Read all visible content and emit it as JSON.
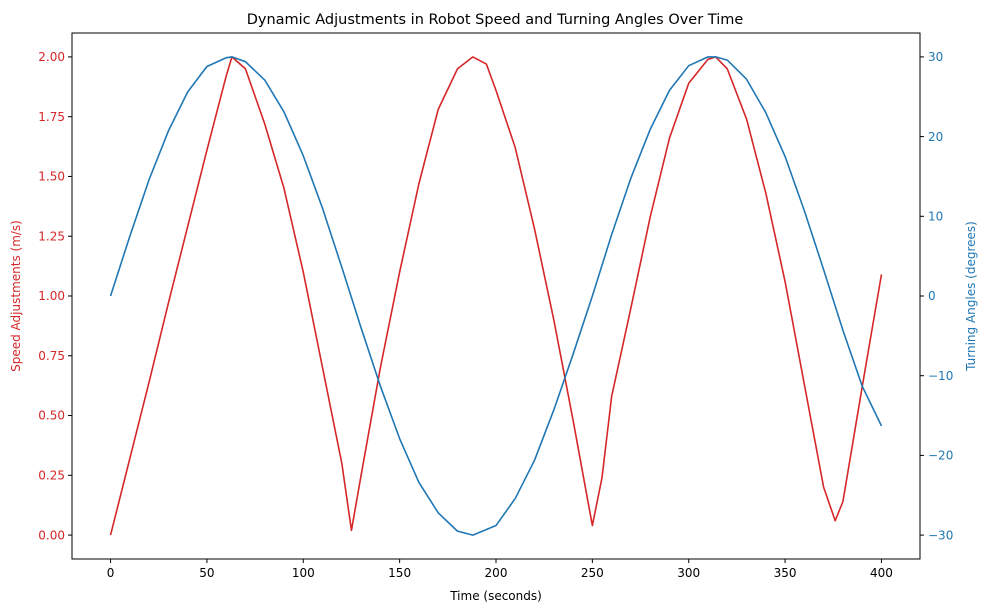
{
  "chart_data": {
    "type": "line",
    "title": "Dynamic Adjustments in Robot Speed and Turning Angles Over Time",
    "xlabel": "Time (seconds)",
    "ylabel_left": "Speed Adjustments (m/s)",
    "ylabel_right": "Turning Angles (degrees)",
    "xlim": [
      -20,
      420
    ],
    "ylim_left": [
      -0.1,
      2.1
    ],
    "ylim_right": [
      -33,
      33
    ],
    "x_ticks": [
      0,
      50,
      100,
      150,
      200,
      250,
      300,
      350,
      400
    ],
    "y_left_ticks": [
      0.0,
      0.25,
      0.5,
      0.75,
      1.0,
      1.25,
      1.5,
      1.75,
      2.0
    ],
    "y_left_tick_labels": [
      "0.00",
      "0.25",
      "0.50",
      "0.75",
      "1.00",
      "1.25",
      "1.50",
      "1.75",
      "2.00"
    ],
    "y_right_ticks": [
      -30,
      -20,
      -10,
      0,
      10,
      20,
      30
    ],
    "y_right_tick_labels": [
      "−30",
      "−20",
      "−10",
      "0",
      "10",
      "20",
      "30"
    ],
    "grid": false,
    "series": [
      {
        "axis": "left",
        "color": "#d62728",
        "x": [
          0,
          10,
          20,
          30,
          40,
          50,
          60,
          63,
          70,
          80,
          90,
          100,
          110,
          120,
          125,
          130,
          140,
          150,
          160,
          170,
          180,
          188,
          195,
          200,
          210,
          220,
          230,
          240,
          250,
          255,
          260,
          270,
          280,
          290,
          300,
          310,
          314,
          320,
          330,
          340,
          350,
          360,
          370,
          376,
          380,
          390,
          400
        ],
        "values": [
          0.0,
          0.32,
          0.64,
          0.97,
          1.29,
          1.61,
          1.92,
          2.0,
          1.95,
          1.72,
          1.45,
          1.1,
          0.7,
          0.3,
          0.02,
          0.25,
          0.7,
          1.1,
          1.47,
          1.78,
          1.95,
          2.0,
          1.97,
          1.86,
          1.62,
          1.28,
          0.9,
          0.48,
          0.04,
          0.24,
          0.58,
          0.95,
          1.33,
          1.66,
          1.89,
          1.99,
          2.0,
          1.95,
          1.74,
          1.43,
          1.06,
          0.63,
          0.2,
          0.06,
          0.14,
          0.62,
          1.09
        ]
      },
      {
        "axis": "right",
        "color": "#1f77b4",
        "x": [
          0,
          10,
          20,
          30,
          40,
          50,
          60,
          63,
          70,
          80,
          90,
          100,
          110,
          120,
          130,
          140,
          150,
          160,
          170,
          180,
          188,
          200,
          210,
          220,
          230,
          240,
          250,
          260,
          270,
          280,
          290,
          300,
          310,
          314,
          320,
          330,
          340,
          350,
          360,
          370,
          380,
          390,
          400
        ],
        "values": [
          0.0,
          7.5,
          14.6,
          20.7,
          25.6,
          28.8,
          29.9,
          30.0,
          29.4,
          27.1,
          23.1,
          17.6,
          11.0,
          3.6,
          -4.0,
          -11.3,
          -17.9,
          -23.4,
          -27.2,
          -29.5,
          -30.0,
          -28.8,
          -25.4,
          -20.6,
          -14.3,
          -7.3,
          0.0,
          7.7,
          14.8,
          20.9,
          25.8,
          28.9,
          30.0,
          30.0,
          29.6,
          27.2,
          23.0,
          17.5,
          10.7,
          3.3,
          -4.3,
          -11.3,
          -16.3
        ]
      }
    ]
  }
}
